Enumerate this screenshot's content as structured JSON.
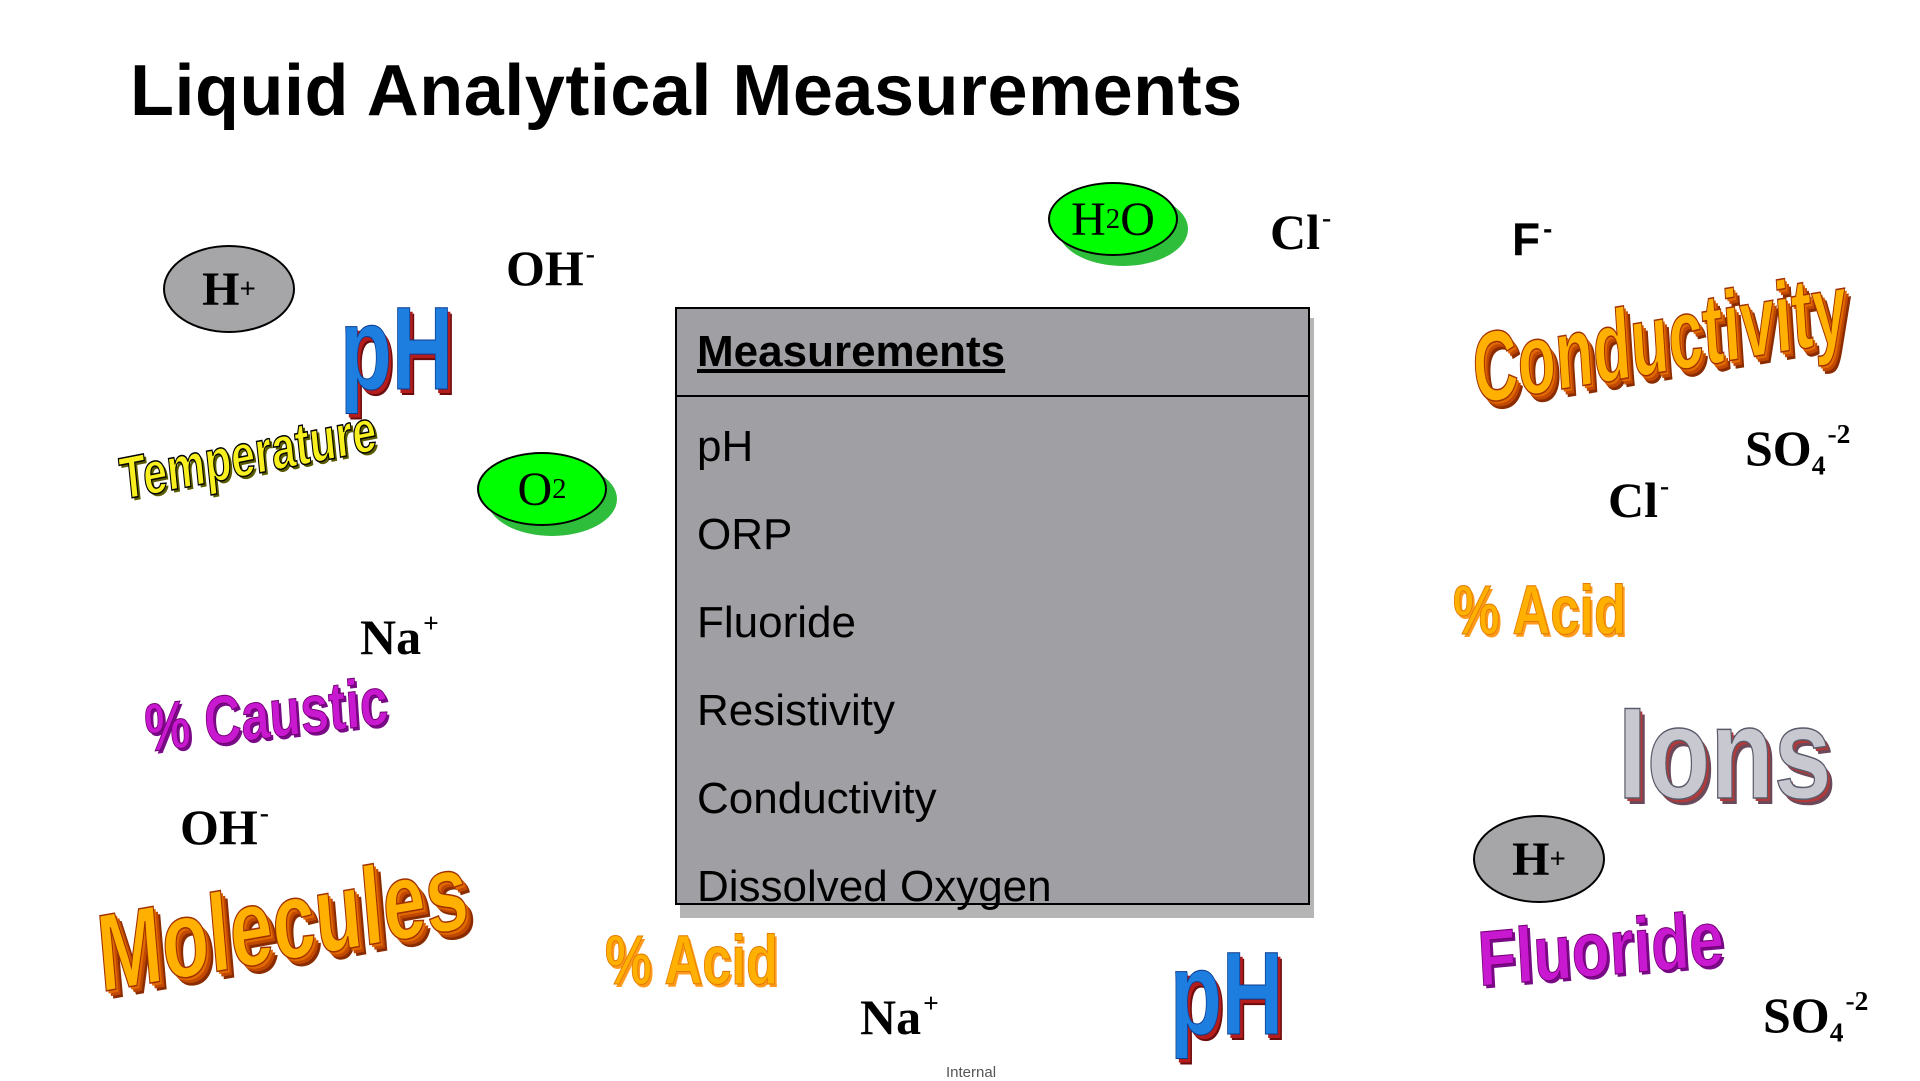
{
  "title": "Liquid Analytical Measurements",
  "table": {
    "header": "Measurements",
    "items": [
      "pH",
      "ORP",
      "Fluoride",
      "Resistivity",
      "Conductivity",
      "Dissolved Oxygen"
    ]
  },
  "chem": {
    "h_plus_1": {
      "base": "H",
      "sup": "+"
    },
    "h_plus_2": {
      "base": "H",
      "sup": "+"
    },
    "oh_1": {
      "base": "OH",
      "sup": "-"
    },
    "oh_2": {
      "base": "OH",
      "sup": "-"
    },
    "h2o": {
      "a": "H",
      "sub": "2",
      "b": "O"
    },
    "o2": {
      "a": "O",
      "sub": "2"
    },
    "cl_1": {
      "base": "Cl",
      "sup": "-"
    },
    "cl_2": {
      "base": "Cl",
      "sup": "-"
    },
    "f": {
      "base": "F",
      "sup": "-"
    },
    "na_1": {
      "base": "Na",
      "sup": "+"
    },
    "na_2": {
      "base": "Na",
      "sup": "+"
    },
    "so4_1": {
      "base": "SO",
      "sub": "4",
      "sup": "-2"
    },
    "so4_2": {
      "base": "SO",
      "sub": "4",
      "sup": "-2"
    }
  },
  "wordart": {
    "ph_1": "pH",
    "ph_2": "pH",
    "temperature": "Temperature",
    "caustic": "% Caustic",
    "molecules": "Molecules",
    "acid_1": "% Acid",
    "acid_2": "% Acid",
    "conductivity": "Conductivity",
    "ions": "Ions",
    "fluoride": "Fluoride"
  },
  "footer": "Internal",
  "colors": {
    "green": "#00ff00",
    "grey_oval": "#a6a6a8",
    "panel": "#a0a0a4"
  }
}
